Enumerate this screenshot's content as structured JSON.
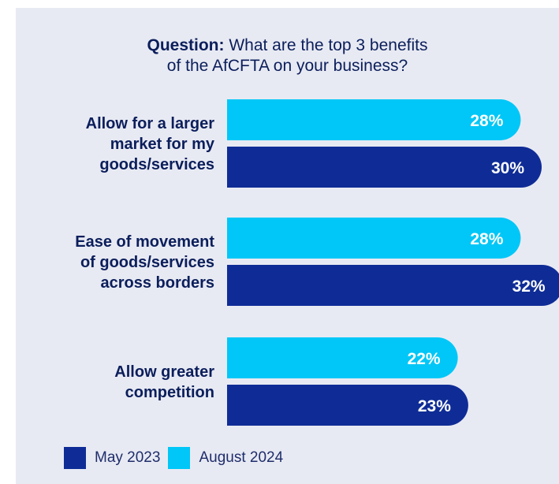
{
  "question": {
    "label": "Question:",
    "text": " What are the top 3 benefits\nof the AfCFTA on your business?"
  },
  "colors": {
    "panel_background": "#e8eaf3",
    "text": "#0b1e5b",
    "may_2023": "#0f2c96",
    "august_2024": "#00c7f7"
  },
  "legend": [
    {
      "label": "May 2023",
      "series": "May 2023"
    },
    {
      "label": "August 2024",
      "series": "August 2024"
    }
  ],
  "chart_data": {
    "type": "bar",
    "orientation": "horizontal",
    "categories": [
      [
        "Allow for a larger",
        "market for my",
        "goods/services"
      ],
      [
        "Ease of movement",
        "of goods/services",
        "across borders"
      ],
      [
        "Allow greater",
        "competition"
      ]
    ],
    "series": [
      {
        "name": "August 2024",
        "values": [
          28,
          28,
          22
        ],
        "labels": [
          "28%",
          "28%",
          "22%"
        ]
      },
      {
        "name": "May 2023",
        "values": [
          30,
          32,
          23
        ],
        "labels": [
          "30%",
          "32%",
          "23%"
        ]
      }
    ],
    "value_unit": "%",
    "grid": false,
    "legend_position": "bottom-left"
  }
}
